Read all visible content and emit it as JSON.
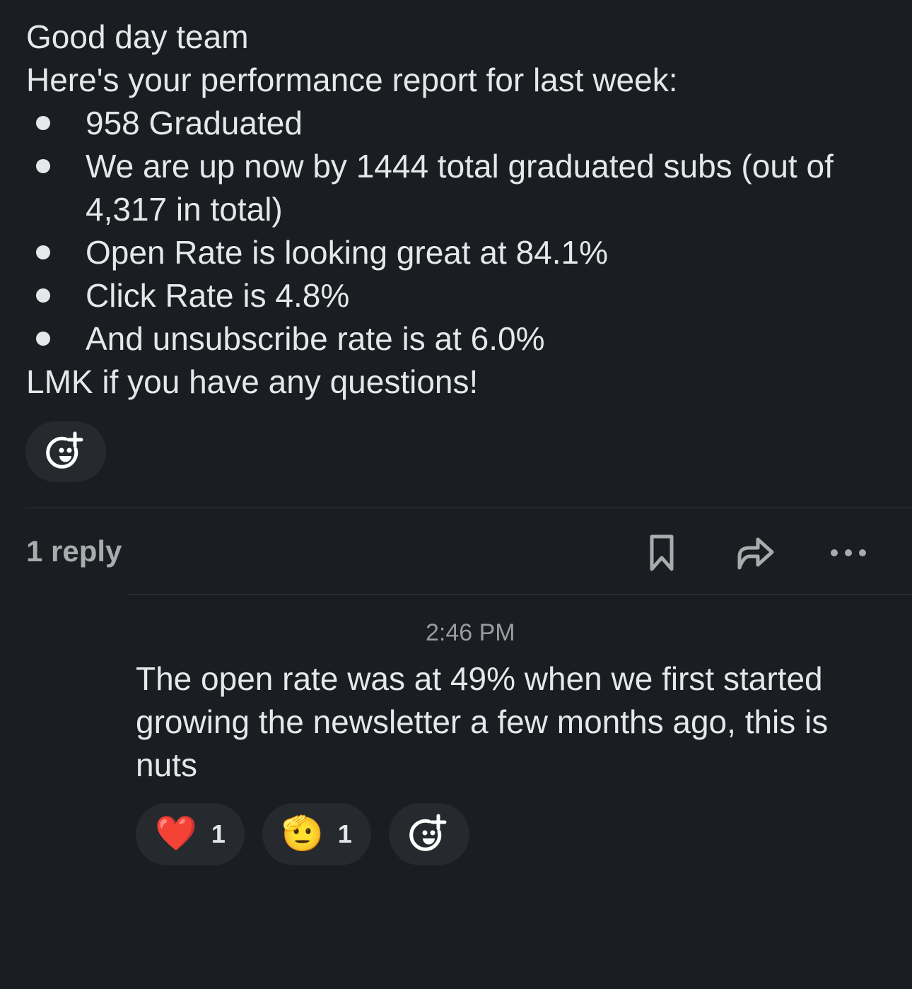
{
  "message": {
    "greeting": "Good day team",
    "intro": "Here's your performance report for last week:",
    "bullets": [
      "958 Graduated",
      "We are up now by 1444 total graduated subs (out of 4,317 in total)",
      "Open Rate is looking great at 84.1%",
      "Click Rate is 4.8%",
      "And unsubscribe rate is at 6.0%"
    ],
    "closing": "LMK if you have any questions!"
  },
  "thread": {
    "reply_count": "1 reply",
    "actions": [
      "bookmark-icon",
      "share-icon",
      "more-icon"
    ]
  },
  "reply": {
    "time": "2:46 PM",
    "text": "The open rate was at 49% when we first started growing the newsletter a few months ago, this is nuts",
    "reactions": [
      {
        "emoji": "❤️",
        "name": "heart",
        "count": "1"
      },
      {
        "emoji": "🫡",
        "name": "saluting-face",
        "count": "1"
      }
    ]
  }
}
